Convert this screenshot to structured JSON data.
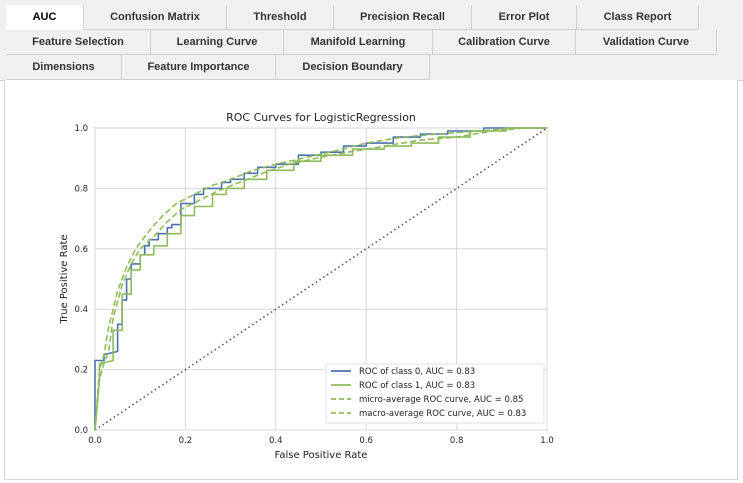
{
  "tabs": {
    "row1": [
      "AUC",
      "Confusion Matrix",
      "Threshold",
      "Precision Recall",
      "Error Plot",
      "Class Report"
    ],
    "row2": [
      "Feature Selection",
      "Learning Curve",
      "Manifold Learning",
      "Calibration Curve",
      "Validation Curve"
    ],
    "row3": [
      "Dimensions",
      "Feature Importance",
      "Decision Boundary"
    ],
    "active": "AUC"
  },
  "colors": {
    "class0": "#4c72b0",
    "class1": "#8fbc5a",
    "diagonal": "#555555",
    "grid": "#d8d8d8"
  },
  "chart_data": {
    "type": "line",
    "title": "ROC Curves for LogisticRegression",
    "xlabel": "False Positive Rate",
    "ylabel": "True Positive Rate",
    "xlim": [
      0,
      1
    ],
    "ylim": [
      0,
      1
    ],
    "xticks": [
      "0.0",
      "0.2",
      "0.4",
      "0.6",
      "0.8",
      "1.0"
    ],
    "yticks": [
      "0.0",
      "0.2",
      "0.4",
      "0.6",
      "0.8",
      "1.0"
    ],
    "grid": true,
    "legend_position": "lower-right",
    "series": [
      {
        "name": "ROC of class 0, AUC = 0.83",
        "style": "solid",
        "x": [
          0,
          0,
          0.02,
          0.02,
          0.05,
          0.05,
          0.06,
          0.06,
          0.07,
          0.07,
          0.08,
          0.08,
          0.1,
          0.1,
          0.11,
          0.11,
          0.12,
          0.12,
          0.14,
          0.14,
          0.16,
          0.16,
          0.17,
          0.17,
          0.19,
          0.19,
          0.22,
          0.22,
          0.24,
          0.24,
          0.28,
          0.28,
          0.3,
          0.3,
          0.33,
          0.33,
          0.36,
          0.36,
          0.4,
          0.4,
          0.45,
          0.45,
          0.5,
          0.5,
          0.55,
          0.55,
          0.6,
          0.6,
          0.66,
          0.66,
          0.72,
          0.72,
          0.78,
          0.78,
          0.86,
          0.86,
          0.93,
          0.93,
          1.0
        ],
        "y": [
          0,
          0.23,
          0.23,
          0.25,
          0.26,
          0.35,
          0.35,
          0.43,
          0.43,
          0.5,
          0.5,
          0.55,
          0.55,
          0.58,
          0.58,
          0.61,
          0.61,
          0.63,
          0.63,
          0.65,
          0.65,
          0.67,
          0.67,
          0.68,
          0.68,
          0.75,
          0.75,
          0.78,
          0.78,
          0.8,
          0.8,
          0.82,
          0.82,
          0.83,
          0.83,
          0.85,
          0.85,
          0.87,
          0.87,
          0.88,
          0.88,
          0.91,
          0.91,
          0.92,
          0.92,
          0.94,
          0.94,
          0.95,
          0.95,
          0.97,
          0.97,
          0.98,
          0.98,
          0.99,
          0.99,
          1.0,
          1.0,
          1.0,
          1.0
        ]
      },
      {
        "name": "ROC of class 1, AUC = 0.83",
        "style": "solid",
        "x": [
          0,
          0.01,
          0.01,
          0.04,
          0.04,
          0.06,
          0.06,
          0.08,
          0.08,
          0.1,
          0.1,
          0.13,
          0.13,
          0.16,
          0.16,
          0.19,
          0.19,
          0.22,
          0.22,
          0.26,
          0.26,
          0.29,
          0.29,
          0.33,
          0.33,
          0.38,
          0.38,
          0.44,
          0.44,
          0.5,
          0.5,
          0.57,
          0.57,
          0.64,
          0.64,
          0.7,
          0.7,
          0.76,
          0.76,
          0.83,
          0.83,
          0.91,
          0.91,
          1.0
        ],
        "y": [
          0,
          0.17,
          0.22,
          0.23,
          0.33,
          0.33,
          0.45,
          0.45,
          0.53,
          0.53,
          0.58,
          0.58,
          0.61,
          0.61,
          0.65,
          0.65,
          0.71,
          0.71,
          0.74,
          0.74,
          0.78,
          0.78,
          0.8,
          0.8,
          0.83,
          0.83,
          0.86,
          0.86,
          0.89,
          0.89,
          0.91,
          0.91,
          0.93,
          0.93,
          0.94,
          0.94,
          0.95,
          0.95,
          0.97,
          0.97,
          0.99,
          0.99,
          1.0,
          1.0
        ]
      },
      {
        "name": "micro-average ROC curve, AUC = 0.85",
        "style": "dashed",
        "x": [
          0,
          0.01,
          0.02,
          0.03,
          0.05,
          0.07,
          0.09,
          0.12,
          0.15,
          0.18,
          0.22,
          0.26,
          0.3,
          0.35,
          0.4,
          0.46,
          0.52,
          0.6,
          0.68,
          0.76,
          0.85,
          0.93,
          1.0
        ],
        "y": [
          0,
          0.2,
          0.25,
          0.34,
          0.46,
          0.54,
          0.6,
          0.66,
          0.71,
          0.75,
          0.78,
          0.81,
          0.83,
          0.86,
          0.88,
          0.9,
          0.92,
          0.95,
          0.97,
          0.98,
          0.99,
          1.0,
          1.0
        ]
      },
      {
        "name": "macro-average ROC curve, AUC = 0.83",
        "style": "dashed",
        "x": [
          0,
          0.01,
          0.02,
          0.03,
          0.04,
          0.06,
          0.08,
          0.1,
          0.13,
          0.16,
          0.19,
          0.23,
          0.27,
          0.32,
          0.37,
          0.43,
          0.49,
          0.56,
          0.64,
          0.72,
          0.8,
          0.88,
          0.95,
          1.0
        ],
        "y": [
          0,
          0.17,
          0.22,
          0.26,
          0.37,
          0.48,
          0.55,
          0.6,
          0.64,
          0.69,
          0.73,
          0.76,
          0.79,
          0.82,
          0.85,
          0.88,
          0.9,
          0.92,
          0.94,
          0.96,
          0.97,
          0.99,
          1.0,
          1.0
        ]
      }
    ]
  }
}
